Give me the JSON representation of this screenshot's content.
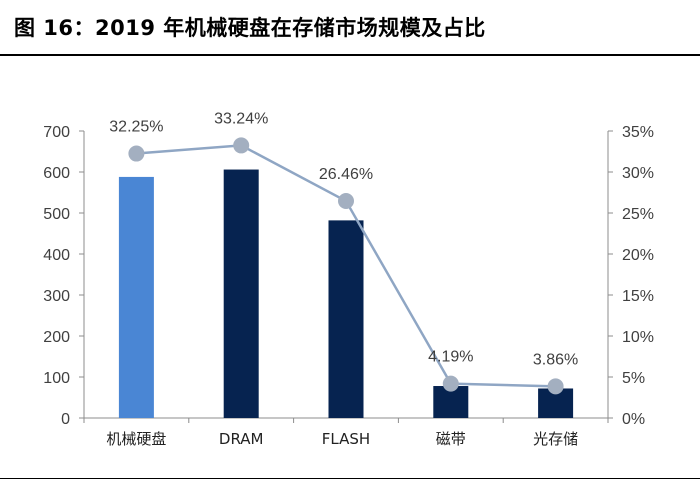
{
  "header": {
    "title": "图 16：2019 年机械硬盘在存储市场规模及占比"
  },
  "chart_data": {
    "type": "bar",
    "title": "图 16：2019 年机械硬盘在存储市场规模及占比",
    "categories": [
      "机械硬盘",
      "DRAM",
      "FLASH",
      "磁带",
      "光存储"
    ],
    "series": [
      {
        "type": "bar",
        "axis": "left",
        "values": [
          588,
          606,
          482,
          78,
          72
        ],
        "colors": [
          "#4a86d4",
          "#062350",
          "#062350",
          "#062350",
          "#062350"
        ]
      },
      {
        "type": "line",
        "axis": "right",
        "values": [
          32.25,
          33.24,
          26.46,
          4.19,
          3.86
        ],
        "labels": [
          "32.25%",
          "33.24%",
          "26.46%",
          "4.19%",
          "3.86%"
        ],
        "color": "#8fa6c4",
        "marker_color": "#a3afc0"
      }
    ],
    "y_left": {
      "lim": [
        0,
        700
      ],
      "ticks": [
        "0",
        "100",
        "200",
        "300",
        "400",
        "500",
        "600",
        "700"
      ]
    },
    "y_right": {
      "lim": [
        0,
        35
      ],
      "ticks": [
        "0%",
        "5%",
        "10%",
        "15%",
        "20%",
        "25%",
        "30%",
        "35%"
      ]
    },
    "grid": false,
    "legend": "none"
  }
}
